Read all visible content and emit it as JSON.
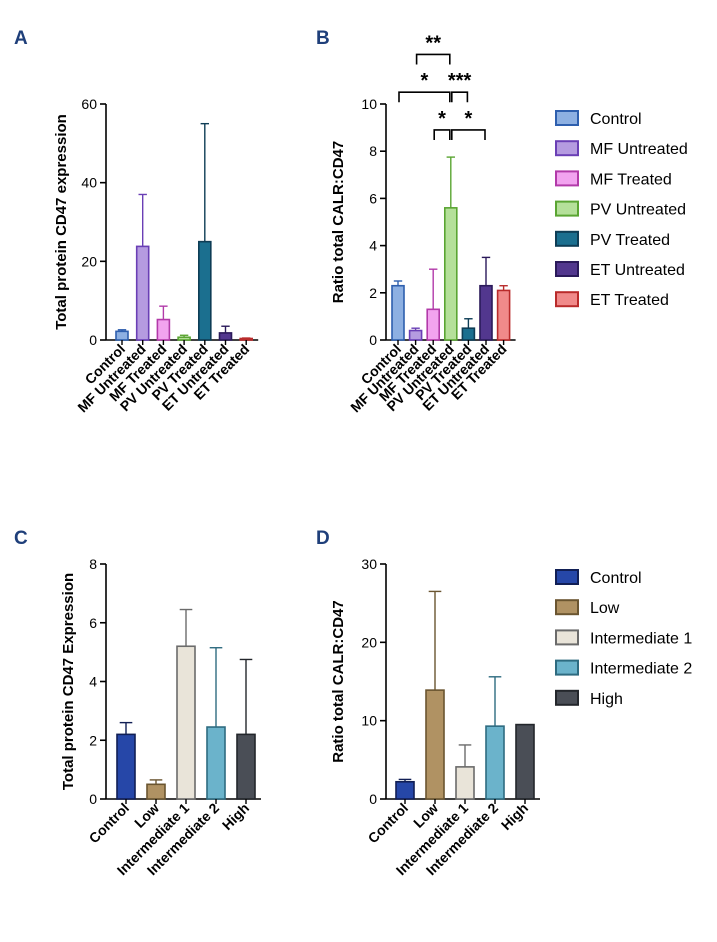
{
  "panels": {
    "A": {
      "label": "A"
    },
    "B": {
      "label": "B"
    },
    "C": {
      "label": "C"
    },
    "D": {
      "label": "D"
    }
  },
  "legend_top": {
    "items": [
      {
        "label": "Control",
        "fill": "#8db0e2",
        "stroke": "#2e5fae"
      },
      {
        "label": "MF Untreated",
        "fill": "#b59be0",
        "stroke": "#6a3fb5"
      },
      {
        "label": "MF Treated",
        "fill": "#f2a3ef",
        "stroke": "#b23aa9"
      },
      {
        "label": "PV Untreated",
        "fill": "#b5e09a",
        "stroke": "#5aa532"
      },
      {
        "label": "PV Treated",
        "fill": "#1b6f8f",
        "stroke": "#0e3d55"
      },
      {
        "label": "ET Untreated",
        "fill": "#52378e",
        "stroke": "#2b1a5a"
      },
      {
        "label": "ET Treated",
        "fill": "#f08a8a",
        "stroke": "#b92b2b"
      }
    ]
  },
  "legend_bottom": {
    "items": [
      {
        "label": "Control",
        "fill": "#2647a8",
        "stroke": "#111f55"
      },
      {
        "label": "Low",
        "fill": "#b09263",
        "stroke": "#6a5530"
      },
      {
        "label": "Intermediate 1",
        "fill": "#e9e4d9",
        "stroke": "#6b6b6b"
      },
      {
        "label": "Intermediate 2",
        "fill": "#6bb3cb",
        "stroke": "#2e6b80"
      },
      {
        "label": "High",
        "fill": "#4a4e56",
        "stroke": "#23262b"
      }
    ]
  },
  "chart_data": [
    {
      "panel": "A",
      "type": "bar",
      "ylabel": "Total protein CD47 expression",
      "ylim": [
        0,
        60
      ],
      "yticks": [
        "0",
        "20",
        "40",
        "60"
      ],
      "categories": [
        "Control",
        "MF Untreated",
        "MF Treated",
        "PV Untreated",
        "PV Treated",
        "ET Untreated",
        "ET Treated"
      ],
      "values": [
        2.2,
        23.8,
        5.2,
        0.7,
        25,
        1.8,
        0.2
      ],
      "error_upper": [
        2.6,
        37,
        8.6,
        1.2,
        55,
        3.5,
        0.5
      ],
      "palette": "top"
    },
    {
      "panel": "B",
      "type": "bar",
      "ylabel": "Ratio total CALR:CD47",
      "ylim": [
        0,
        10
      ],
      "yticks": [
        "0",
        "2",
        "4",
        "6",
        "8",
        "10"
      ],
      "categories": [
        "Control",
        "MF Untreated",
        "MF Treated",
        "PV Untreated",
        "PV Treated",
        "ET Untreated",
        "ET Treated"
      ],
      "values": [
        2.3,
        0.4,
        1.3,
        5.6,
        0.5,
        2.3,
        2.1
      ],
      "error_upper": [
        2.5,
        0.5,
        3.0,
        7.75,
        0.9,
        3.5,
        2.3
      ],
      "palette": "top",
      "significance": [
        {
          "from": 0,
          "to": 3,
          "label": "*",
          "level": 10.5
        },
        {
          "from": 3,
          "to": 4,
          "label": "***",
          "level": 10.5
        },
        {
          "from": 2,
          "to": 3,
          "label": "*",
          "level": 8.9
        },
        {
          "from": 3,
          "to": 5,
          "label": "*",
          "level": 8.9
        },
        {
          "from": 1,
          "to": 3,
          "label": "**",
          "level": 12.1
        }
      ]
    },
    {
      "panel": "C",
      "type": "bar",
      "ylabel": "Total protein CD47 Expression",
      "ylim": [
        0,
        8
      ],
      "yticks": [
        "0",
        "2",
        "4",
        "6",
        "8"
      ],
      "categories": [
        "Control",
        "Low",
        "Intermediate 1",
        "Intermediate 2",
        "High"
      ],
      "values": [
        2.2,
        0.5,
        5.2,
        2.45,
        2.2
      ],
      "error_upper": [
        2.6,
        0.65,
        6.45,
        5.15,
        4.75
      ],
      "palette": "bottom"
    },
    {
      "panel": "D",
      "type": "bar",
      "ylabel": "Ratio total CALR:CD47",
      "ylim": [
        0,
        30
      ],
      "yticks": [
        "0",
        "10",
        "20",
        "30"
      ],
      "categories": [
        "Control",
        "Low",
        "Intermediate 1",
        "Intermediate 2",
        "High"
      ],
      "values": [
        2.2,
        13.9,
        4.1,
        9.3,
        9.5
      ],
      "error_upper": [
        2.5,
        26.5,
        6.9,
        15.6,
        9.5
      ],
      "palette": "bottom"
    }
  ]
}
